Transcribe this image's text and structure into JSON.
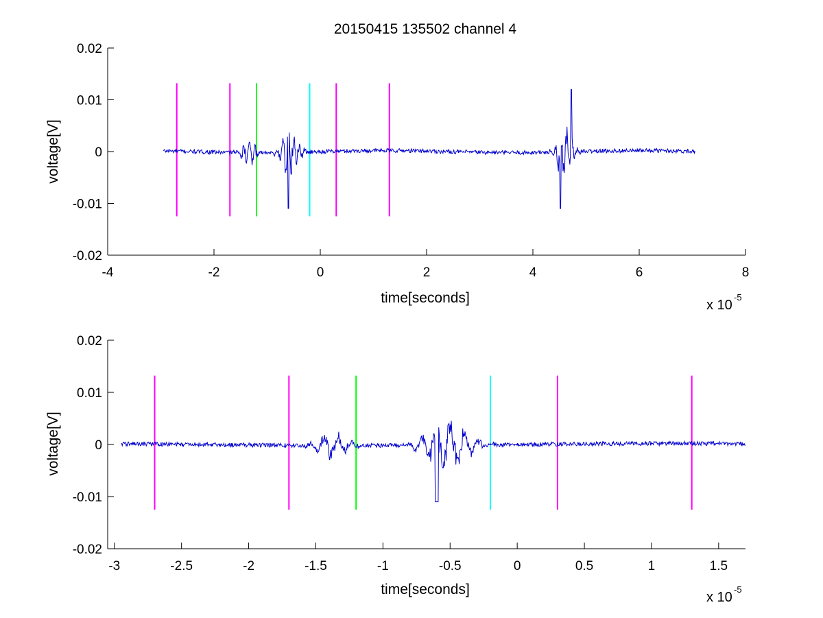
{
  "chart_data": [
    {
      "type": "line",
      "title": "20150415 135502 channel 4",
      "xlabel": "time[seconds]",
      "ylabel": "voltage[V]",
      "x_multiplier": "x 10",
      "x_multiplier_exp": "-5",
      "xlim": [
        -4,
        8
      ],
      "ylim": [
        -0.02,
        0.02
      ],
      "xticks": [
        -4,
        -2,
        0,
        2,
        4,
        6,
        8
      ],
      "xtick_labels": [
        "-4",
        "-2",
        "0",
        "2",
        "4",
        "6",
        "8"
      ],
      "yticks": [
        -0.02,
        -0.01,
        0,
        0.01,
        0.02
      ],
      "ytick_labels": [
        "-0.02",
        "-0.01",
        "0",
        "0.01",
        "0.02"
      ],
      "signal": {
        "color": "#0000cc",
        "x_range": [
          -2.95,
          7.05
        ],
        "bursts": [
          {
            "center": -1.35,
            "width": 0.25,
            "amp": 0.0035
          },
          {
            "center": -0.55,
            "width": 0.3,
            "amp": 0.006,
            "spike_x": -0.6,
            "spike_y": -0.011
          },
          {
            "center": 4.6,
            "width": 0.25,
            "amp": 0.007,
            "spike_x": 4.52,
            "spike_y": -0.011,
            "peak_x": 4.72,
            "peak_y": 0.012
          }
        ]
      },
      "vlines": [
        {
          "x": -2.7,
          "color": "#ff00ff",
          "y_range": [
            -0.0125,
            0.0132
          ]
        },
        {
          "x": -1.7,
          "color": "#ff00ff",
          "y_range": [
            -0.0125,
            0.0132
          ]
        },
        {
          "x": -1.2,
          "color": "#00ff00",
          "y_range": [
            -0.0125,
            0.0132
          ]
        },
        {
          "x": -0.2,
          "color": "#00ffff",
          "y_range": [
            -0.0125,
            0.0132
          ]
        },
        {
          "x": 0.3,
          "color": "#ff00ff",
          "y_range": [
            -0.0125,
            0.0132
          ]
        },
        {
          "x": 1.3,
          "color": "#ff00ff",
          "y_range": [
            -0.0125,
            0.0132
          ]
        }
      ]
    },
    {
      "type": "line",
      "title": "",
      "xlabel": "time[seconds]",
      "ylabel": "voltage[V]",
      "x_multiplier": "x 10",
      "x_multiplier_exp": "-5",
      "xlim": [
        -3.05,
        1.7
      ],
      "ylim": [
        -0.02,
        0.02
      ],
      "xticks": [
        -3,
        -2.5,
        -2,
        -1.5,
        -1,
        -0.5,
        0,
        0.5,
        1,
        1.5
      ],
      "xtick_labels": [
        "-3",
        "-2.5",
        "-2",
        "-1.5",
        "-1",
        "-0.5",
        "0",
        "0.5",
        "1",
        "1.5"
      ],
      "yticks": [
        -0.02,
        -0.01,
        0,
        0.01,
        0.02
      ],
      "ytick_labels": [
        "-0.02",
        "-0.01",
        "0",
        "0.01",
        "0.02"
      ],
      "signal": {
        "color": "#0000cc",
        "x_range": [
          -2.95,
          1.7
        ],
        "bursts": [
          {
            "center": -1.38,
            "width": 0.2,
            "amp": 0.0035
          },
          {
            "center": -0.52,
            "width": 0.3,
            "amp": 0.006,
            "spike_x": -0.6,
            "spike_y": -0.011
          }
        ]
      },
      "vlines": [
        {
          "x": -2.7,
          "color": "#ff00ff",
          "y_range": [
            -0.0125,
            0.0132
          ]
        },
        {
          "x": -1.7,
          "color": "#ff00ff",
          "y_range": [
            -0.0125,
            0.0132
          ]
        },
        {
          "x": -1.2,
          "color": "#00ff00",
          "y_range": [
            -0.0125,
            0.0132
          ]
        },
        {
          "x": -0.2,
          "color": "#00ffff",
          "y_range": [
            -0.0125,
            0.0132
          ]
        },
        {
          "x": 0.3,
          "color": "#ff00ff",
          "y_range": [
            -0.0125,
            0.0132
          ]
        },
        {
          "x": 1.3,
          "color": "#ff00ff",
          "y_range": [
            -0.0125,
            0.0132
          ]
        }
      ]
    }
  ]
}
